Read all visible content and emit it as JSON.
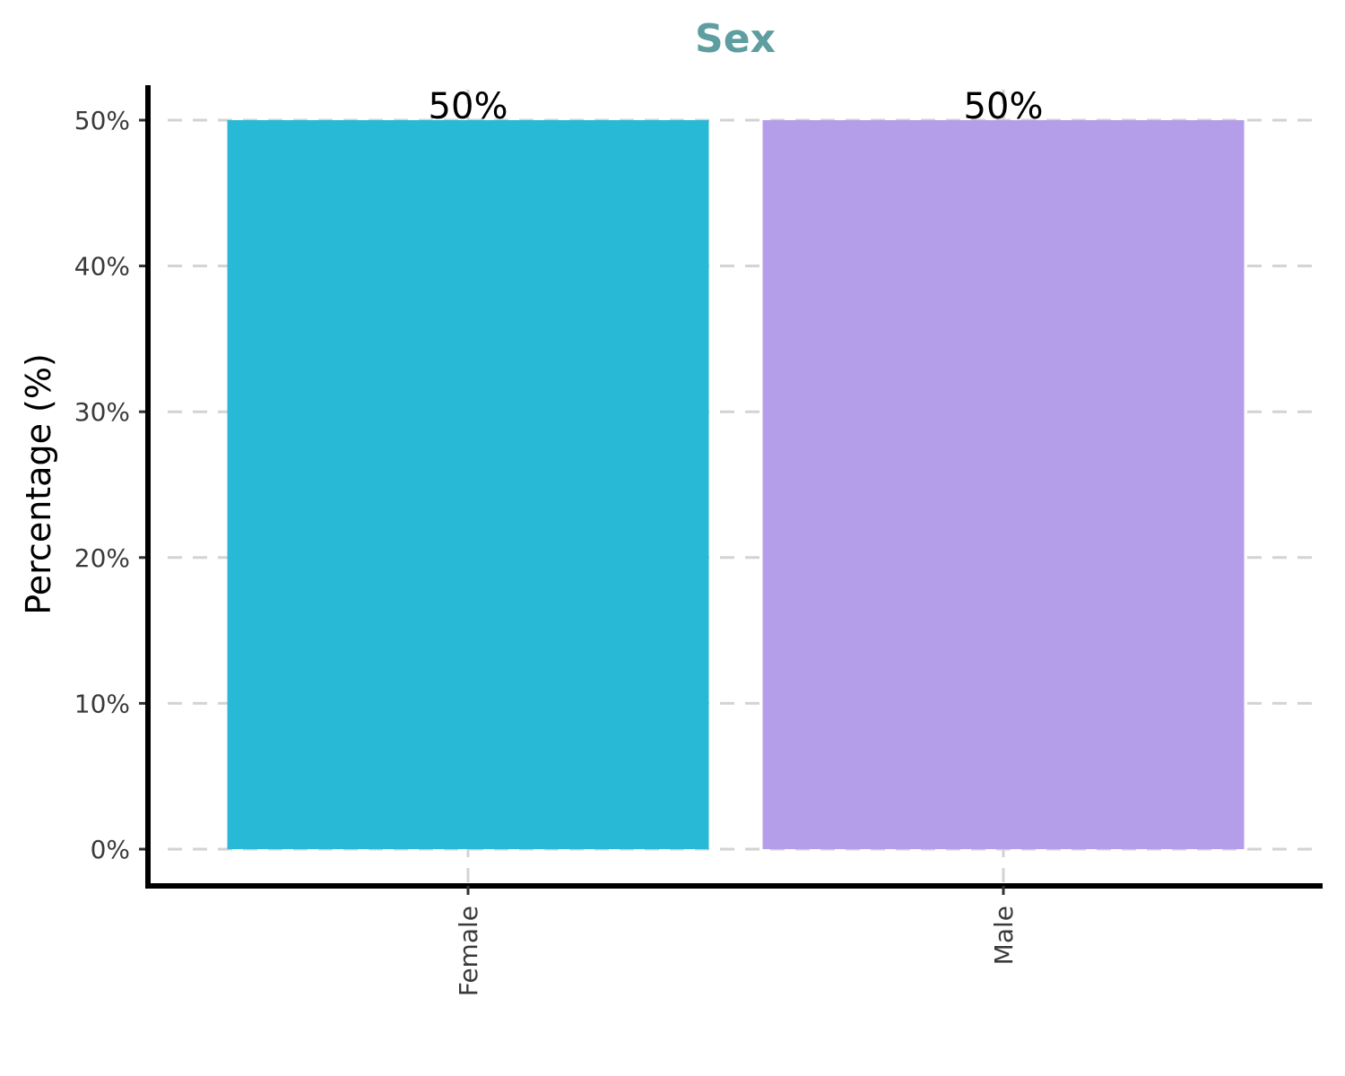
{
  "chart_data": {
    "type": "bar",
    "title": "Sex",
    "xlabel": "",
    "ylabel": "Percentage (%)",
    "categories": [
      "Female",
      "Male"
    ],
    "values": [
      50,
      50
    ],
    "data_labels": [
      "50%",
      "50%"
    ],
    "ylim": [
      0,
      50
    ],
    "yticks": [
      0,
      10,
      20,
      30,
      40,
      50
    ],
    "ytick_labels": [
      "0%",
      "10%",
      "20%",
      "30%",
      "40%",
      "50%"
    ],
    "grid": true,
    "legend": "none",
    "colors": {
      "title": "#5f9ea0",
      "bars": [
        "#27b9d6",
        "#b59ee9"
      ],
      "grid": "#d3d3d3",
      "axis": "#000000"
    }
  }
}
